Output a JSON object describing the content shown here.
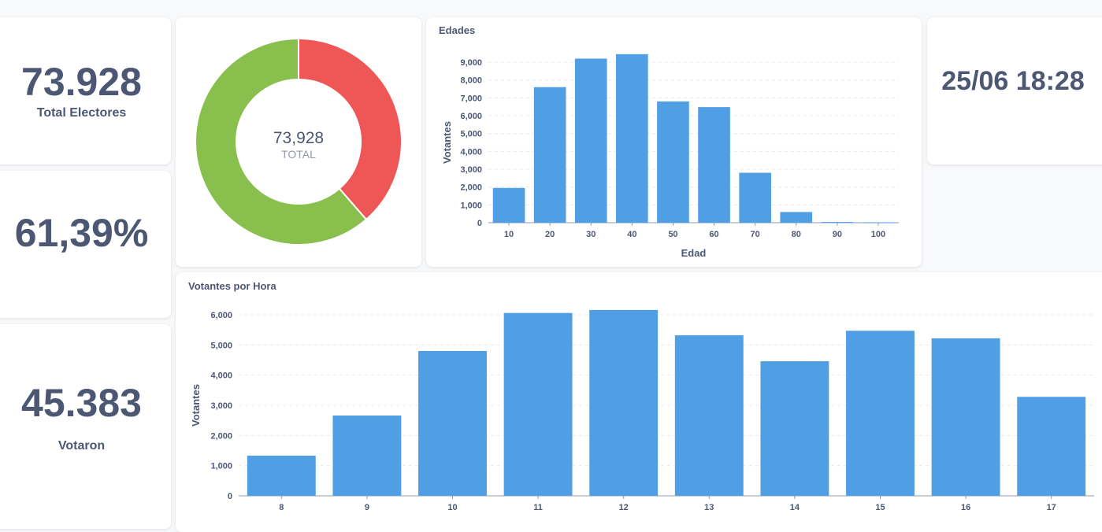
{
  "scalars": {
    "total_electores": {
      "value": "73.928",
      "label": "Total Electores"
    },
    "percent": {
      "value": "61,39%"
    },
    "votaron": {
      "value": "45.383",
      "label": "Votaron"
    },
    "datetime": {
      "value": "25/06 18:28"
    }
  },
  "colors": {
    "bar": "#509ee3",
    "donut_green": "#88bf4d",
    "donut_red": "#ef5757",
    "grid": "#e6e8eb",
    "axis": "#949aab"
  },
  "chart_data": [
    {
      "type": "pie",
      "variant": "donut",
      "center_value": "73,928",
      "center_label": "TOTAL",
      "slices": [
        {
          "value": 45383,
          "color": "#88bf4d"
        },
        {
          "value": 28545,
          "color": "#ef5757"
        }
      ]
    },
    {
      "type": "bar",
      "title": "Edades",
      "xlabel": "Edad",
      "ylabel": "Votantes",
      "categories": [
        "10",
        "20",
        "30",
        "40",
        "50",
        "60",
        "70",
        "80",
        "90",
        "100"
      ],
      "values": [
        1950,
        7600,
        9200,
        9450,
        6800,
        6480,
        2800,
        600,
        40,
        20
      ],
      "ylim": [
        0,
        9000
      ],
      "yticks": [
        0,
        1000,
        2000,
        3000,
        4000,
        5000,
        6000,
        7000,
        8000,
        9000
      ],
      "ytick_labels": [
        "0",
        "1,000",
        "2,000",
        "3,000",
        "4,000",
        "5,000",
        "6,000",
        "7,000",
        "8,000",
        "9,000"
      ],
      "grid": true
    },
    {
      "type": "bar",
      "title": "Votantes por Hora",
      "xlabel": "",
      "ylabel": "Votantes",
      "categories": [
        "8",
        "9",
        "10",
        "11",
        "12",
        "13",
        "14",
        "15",
        "16",
        "17"
      ],
      "values": [
        1330,
        2660,
        4800,
        6060,
        6160,
        5320,
        4460,
        5470,
        5220,
        3280
      ],
      "ylim": [
        0,
        6000
      ],
      "yticks": [
        0,
        1000,
        2000,
        3000,
        4000,
        5000,
        6000
      ],
      "ytick_labels": [
        "0",
        "1,000",
        "2,000",
        "3,000",
        "4,000",
        "5,000",
        "6,000"
      ],
      "grid": true
    }
  ]
}
